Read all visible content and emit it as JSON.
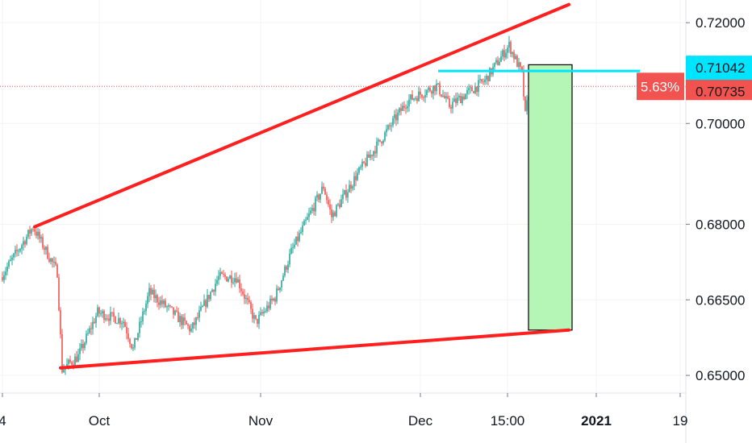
{
  "chart_data": {
    "type": "candlestick",
    "title": "",
    "xlabel": "",
    "ylabel": "",
    "ylim": [
      0.6465,
      0.7245
    ],
    "grid": true,
    "y_ticks": [
      "0.72000",
      "0.70000",
      "0.68000",
      "0.66500",
      "0.65000"
    ],
    "y_tick_values": [
      0.72,
      0.7,
      0.68,
      0.665,
      0.65
    ],
    "x_ticks": [
      "4",
      "Oct",
      "Nov",
      "Dec",
      "15:00",
      "2021",
      "19"
    ],
    "x_tick_index": [
      0,
      60,
      160,
      259,
      313,
      368,
      420
    ],
    "candle_count": 330,
    "price_path": [
      [
        0,
        0.6695
      ],
      [
        20,
        0.6795
      ],
      [
        35,
        0.6705
      ],
      [
        38,
        0.6512
      ],
      [
        48,
        0.6538
      ],
      [
        60,
        0.6625
      ],
      [
        76,
        0.6608
      ],
      [
        82,
        0.6552
      ],
      [
        92,
        0.6665
      ],
      [
        104,
        0.6632
      ],
      [
        118,
        0.659
      ],
      [
        135,
        0.6695
      ],
      [
        146,
        0.6695
      ],
      [
        158,
        0.6605
      ],
      [
        170,
        0.6655
      ],
      [
        180,
        0.6745
      ],
      [
        200,
        0.6875
      ],
      [
        205,
        0.6815
      ],
      [
        220,
        0.6895
      ],
      [
        235,
        0.6965
      ],
      [
        252,
        0.7045
      ],
      [
        270,
        0.7075
      ],
      [
        278,
        0.7035
      ],
      [
        300,
        0.7085
      ],
      [
        315,
        0.7155
      ],
      [
        323,
        0.7098
      ],
      [
        325,
        0.7015
      ],
      [
        328,
        0.7085
      ]
    ],
    "current_price_label": "0.70735",
    "current_price": 0.70735,
    "percent_badge": "5.63%",
    "cyan_level_label": "0.71042",
    "cyan_level": 0.71042,
    "trendlines": [
      {
        "name": "upper",
        "from": [
          20,
          0.6795
        ],
        "to": [
          351,
          0.7236
        ]
      },
      {
        "name": "lower",
        "from": [
          36,
          0.6515
        ],
        "to": [
          351,
          0.659
        ]
      }
    ],
    "cyan_line": {
      "from": [
        270,
        0.71042
      ],
      "to": [
        395,
        0.71042
      ]
    },
    "target_box": {
      "x_from": [
        326,
        353
      ],
      "top": 0.71165,
      "bottom": 0.659
    }
  },
  "colors": {
    "up": "#26a69a",
    "down": "#ef5350",
    "trendline": "#ff1f1f",
    "cyan": "#00e5ff",
    "target_fill": "#b5f5b5",
    "badge_red": "#f05350",
    "grid": "#f0f3fa"
  }
}
